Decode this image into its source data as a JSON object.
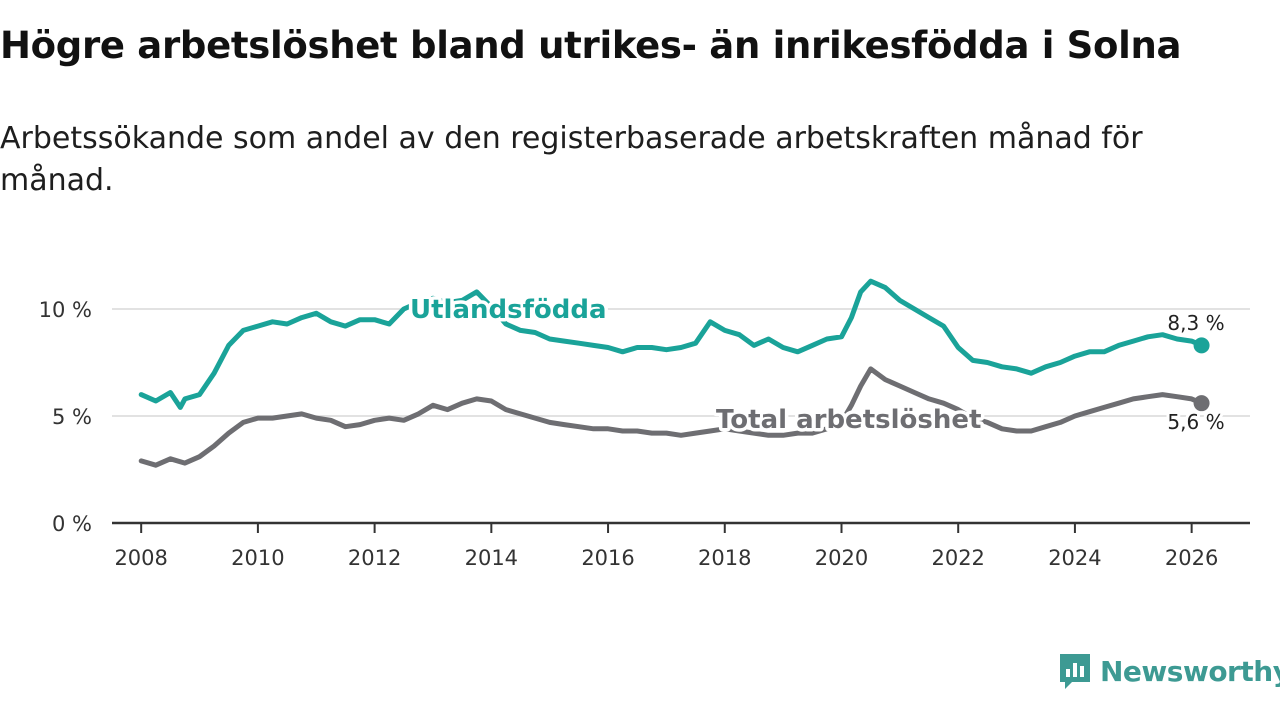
{
  "title": "Högre arbetslöshet bland utrikes- än inrikesfödda i Solna",
  "subtitle": "Arbetssökande som andel av den registerbaserade arbetskraften månad för månad.",
  "brand": {
    "name": "Newsworthy"
  },
  "colors": {
    "foreign": "#1aa399",
    "total": "#6e6e72",
    "grid": "#d9d9d9",
    "axis": "#333333",
    "brand": "#3d9a93"
  },
  "chart_data": {
    "type": "line",
    "title": "Högre arbetslöshet bland utrikes- än inrikesfödda i Solna",
    "xlabel": "",
    "ylabel": "",
    "xlim": [
      2007.5,
      2027.0
    ],
    "ylim": [
      0,
      10
    ],
    "grid": true,
    "x_ticks": [
      2008,
      2010,
      2012,
      2014,
      2016,
      2018,
      2020,
      2022,
      2024,
      2026
    ],
    "y_ticks": [
      {
        "value": 0,
        "label": "0 %"
      },
      {
        "value": 5,
        "label": "5 %"
      },
      {
        "value": 10,
        "label": "10 %"
      }
    ],
    "series": [
      {
        "name": "Utlandsfödda",
        "label": "Utlandsfödda",
        "end_label": "8,3 %",
        "x": [
          2008.0,
          2008.25,
          2008.5,
          2008.67,
          2008.75,
          2009.0,
          2009.25,
          2009.5,
          2009.75,
          2010.0,
          2010.25,
          2010.5,
          2010.75,
          2011.0,
          2011.25,
          2011.5,
          2011.75,
          2012.0,
          2012.25,
          2012.5,
          2012.75,
          2013.0,
          2013.25,
          2013.5,
          2013.75,
          2014.0,
          2014.25,
          2014.5,
          2014.75,
          2015.0,
          2015.25,
          2015.5,
          2015.75,
          2016.0,
          2016.25,
          2016.5,
          2016.75,
          2017.0,
          2017.25,
          2017.5,
          2017.75,
          2018.0,
          2018.25,
          2018.5,
          2018.75,
          2019.0,
          2019.25,
          2019.5,
          2019.75,
          2020.0,
          2020.17,
          2020.33,
          2020.5,
          2020.75,
          2021.0,
          2021.25,
          2021.5,
          2021.75,
          2022.0,
          2022.25,
          2022.5,
          2022.75,
          2023.0,
          2023.25,
          2023.5,
          2023.75,
          2024.0,
          2024.25,
          2024.5,
          2024.75,
          2025.0,
          2025.25,
          2025.5,
          2025.75,
          2026.0,
          2026.17
        ],
        "values": [
          6.0,
          5.7,
          6.1,
          5.4,
          5.8,
          6.0,
          7.0,
          8.3,
          9.0,
          9.2,
          9.4,
          9.3,
          9.6,
          9.8,
          9.4,
          9.2,
          9.5,
          9.5,
          9.3,
          10.0,
          10.3,
          10.5,
          10.3,
          10.4,
          10.8,
          10.1,
          9.3,
          9.0,
          8.9,
          8.6,
          8.5,
          8.4,
          8.3,
          8.2,
          8.0,
          8.2,
          8.2,
          8.1,
          8.2,
          8.4,
          9.4,
          9.0,
          8.8,
          8.3,
          8.6,
          8.2,
          8.0,
          8.3,
          8.6,
          8.7,
          9.6,
          10.8,
          11.3,
          11.0,
          10.4,
          10.0,
          9.6,
          9.2,
          8.2,
          7.6,
          7.5,
          7.3,
          7.2,
          7.0,
          7.3,
          7.5,
          7.8,
          8.0,
          8.0,
          8.3,
          8.5,
          8.7,
          8.8,
          8.6,
          8.5,
          8.3
        ]
      },
      {
        "name": "Total arbetslöshet",
        "label": "Total arbetslöshet",
        "end_label": "5,6 %",
        "x": [
          2008.0,
          2008.25,
          2008.5,
          2008.75,
          2009.0,
          2009.25,
          2009.5,
          2009.75,
          2010.0,
          2010.25,
          2010.5,
          2010.75,
          2011.0,
          2011.25,
          2011.5,
          2011.75,
          2012.0,
          2012.25,
          2012.5,
          2012.75,
          2013.0,
          2013.25,
          2013.5,
          2013.75,
          2014.0,
          2014.25,
          2014.5,
          2014.75,
          2015.0,
          2015.25,
          2015.5,
          2015.75,
          2016.0,
          2016.25,
          2016.5,
          2016.75,
          2017.0,
          2017.25,
          2017.5,
          2017.75,
          2018.0,
          2018.25,
          2018.5,
          2018.75,
          2019.0,
          2019.25,
          2019.5,
          2019.75,
          2020.0,
          2020.17,
          2020.33,
          2020.5,
          2020.75,
          2021.0,
          2021.25,
          2021.5,
          2021.75,
          2022.0,
          2022.25,
          2022.5,
          2022.75,
          2023.0,
          2023.25,
          2023.5,
          2023.75,
          2024.0,
          2024.25,
          2024.5,
          2024.75,
          2025.0,
          2025.25,
          2025.5,
          2025.75,
          2026.0,
          2026.17
        ],
        "values": [
          2.9,
          2.7,
          3.0,
          2.8,
          3.1,
          3.6,
          4.2,
          4.7,
          4.9,
          4.9,
          5.0,
          5.1,
          4.9,
          4.8,
          4.5,
          4.6,
          4.8,
          4.9,
          4.8,
          5.1,
          5.5,
          5.3,
          5.6,
          5.8,
          5.7,
          5.3,
          5.1,
          4.9,
          4.7,
          4.6,
          4.5,
          4.4,
          4.4,
          4.3,
          4.3,
          4.2,
          4.2,
          4.1,
          4.2,
          4.3,
          4.4,
          4.3,
          4.2,
          4.1,
          4.1,
          4.2,
          4.2,
          4.4,
          4.7,
          5.5,
          6.4,
          7.2,
          6.7,
          6.4,
          6.1,
          5.8,
          5.6,
          5.3,
          4.9,
          4.7,
          4.4,
          4.3,
          4.3,
          4.5,
          4.7,
          5.0,
          5.2,
          5.4,
          5.6,
          5.8,
          5.9,
          6.0,
          5.9,
          5.8,
          5.6
        ]
      }
    ]
  }
}
